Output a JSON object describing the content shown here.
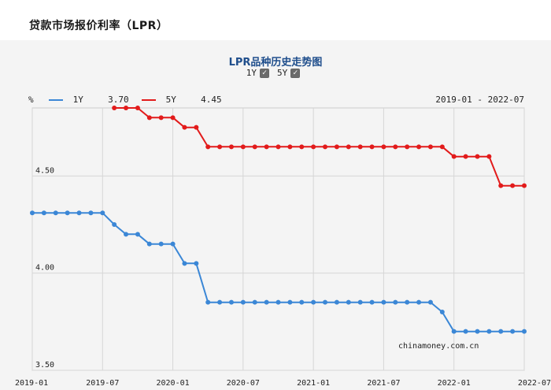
{
  "page": {
    "title": "贷款市场报价利率（LPR）"
  },
  "toggles": [
    {
      "label": "1Y",
      "checked": true
    },
    {
      "label": "5Y",
      "checked": true
    }
  ],
  "legend": {
    "unit": "%",
    "series_1": {
      "name": "1Y",
      "latest": "3.70",
      "color": "#3b87d6"
    },
    "series_2": {
      "name": "5Y",
      "latest": "4.45",
      "color": "#e21b1b"
    }
  },
  "date_range": "2019-01 - 2022-07",
  "watermark": "chinamoney.com.cn",
  "chart_data": {
    "type": "line",
    "title": "LPR品种历史走势图",
    "xlabel": "",
    "ylabel": "%",
    "xlim": [
      "2019-01",
      "2022-07"
    ],
    "ylim": [
      3.5,
      4.85
    ],
    "y_ticks": [
      "4.50",
      "4.00",
      "3.50"
    ],
    "x_ticks": [
      "2019-01",
      "2019-07",
      "2020-01",
      "2020-07",
      "2021-01",
      "2021-07",
      "2022-01",
      "2022-07"
    ],
    "grid": true,
    "legend_position": "top-left",
    "series": [
      {
        "name": "1Y",
        "color": "#3b87d6",
        "points": [
          [
            "2019-01",
            4.31
          ],
          [
            "2019-02",
            4.31
          ],
          [
            "2019-03",
            4.31
          ],
          [
            "2019-04",
            4.31
          ],
          [
            "2019-05",
            4.31
          ],
          [
            "2019-06",
            4.31
          ],
          [
            "2019-07",
            4.31
          ],
          [
            "2019-08",
            4.25
          ],
          [
            "2019-09",
            4.2
          ],
          [
            "2019-10",
            4.2
          ],
          [
            "2019-11",
            4.15
          ],
          [
            "2019-12",
            4.15
          ],
          [
            "2020-01",
            4.15
          ],
          [
            "2020-02",
            4.05
          ],
          [
            "2020-03",
            4.05
          ],
          [
            "2020-04",
            3.85
          ],
          [
            "2020-05",
            3.85
          ],
          [
            "2020-06",
            3.85
          ],
          [
            "2020-07",
            3.85
          ],
          [
            "2020-08",
            3.85
          ],
          [
            "2020-09",
            3.85
          ],
          [
            "2020-10",
            3.85
          ],
          [
            "2020-11",
            3.85
          ],
          [
            "2020-12",
            3.85
          ],
          [
            "2021-01",
            3.85
          ],
          [
            "2021-02",
            3.85
          ],
          [
            "2021-03",
            3.85
          ],
          [
            "2021-04",
            3.85
          ],
          [
            "2021-05",
            3.85
          ],
          [
            "2021-06",
            3.85
          ],
          [
            "2021-07",
            3.85
          ],
          [
            "2021-08",
            3.85
          ],
          [
            "2021-09",
            3.85
          ],
          [
            "2021-10",
            3.85
          ],
          [
            "2021-11",
            3.85
          ],
          [
            "2021-12",
            3.8
          ],
          [
            "2022-01",
            3.7
          ],
          [
            "2022-02",
            3.7
          ],
          [
            "2022-03",
            3.7
          ],
          [
            "2022-04",
            3.7
          ],
          [
            "2022-05",
            3.7
          ],
          [
            "2022-06",
            3.7
          ],
          [
            "2022-07",
            3.7
          ]
        ]
      },
      {
        "name": "5Y",
        "color": "#e21b1b",
        "points": [
          [
            "2019-08",
            4.85
          ],
          [
            "2019-09",
            4.85
          ],
          [
            "2019-10",
            4.85
          ],
          [
            "2019-11",
            4.8
          ],
          [
            "2019-12",
            4.8
          ],
          [
            "2020-01",
            4.8
          ],
          [
            "2020-02",
            4.75
          ],
          [
            "2020-03",
            4.75
          ],
          [
            "2020-04",
            4.65
          ],
          [
            "2020-05",
            4.65
          ],
          [
            "2020-06",
            4.65
          ],
          [
            "2020-07",
            4.65
          ],
          [
            "2020-08",
            4.65
          ],
          [
            "2020-09",
            4.65
          ],
          [
            "2020-10",
            4.65
          ],
          [
            "2020-11",
            4.65
          ],
          [
            "2020-12",
            4.65
          ],
          [
            "2021-01",
            4.65
          ],
          [
            "2021-02",
            4.65
          ],
          [
            "2021-03",
            4.65
          ],
          [
            "2021-04",
            4.65
          ],
          [
            "2021-05",
            4.65
          ],
          [
            "2021-06",
            4.65
          ],
          [
            "2021-07",
            4.65
          ],
          [
            "2021-08",
            4.65
          ],
          [
            "2021-09",
            4.65
          ],
          [
            "2021-10",
            4.65
          ],
          [
            "2021-11",
            4.65
          ],
          [
            "2021-12",
            4.65
          ],
          [
            "2022-01",
            4.6
          ],
          [
            "2022-02",
            4.6
          ],
          [
            "2022-03",
            4.6
          ],
          [
            "2022-04",
            4.6
          ],
          [
            "2022-05",
            4.45
          ],
          [
            "2022-06",
            4.45
          ],
          [
            "2022-07",
            4.45
          ]
        ]
      }
    ]
  }
}
